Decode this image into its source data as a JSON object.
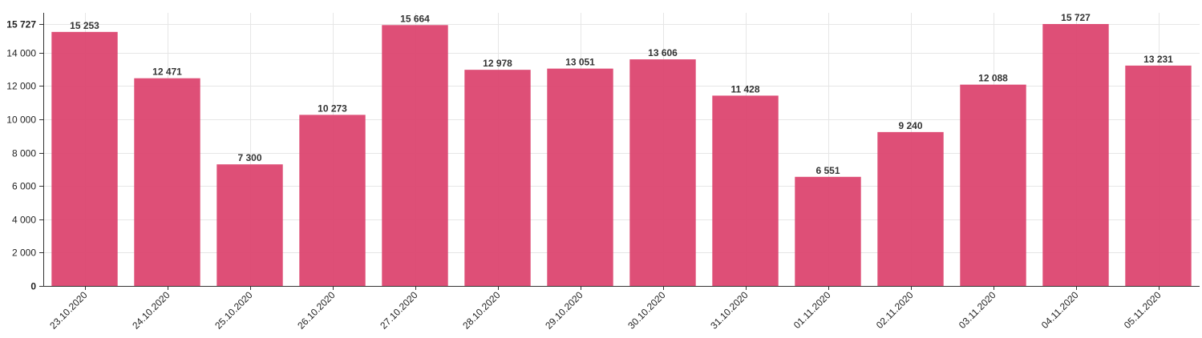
{
  "chart_data": {
    "type": "bar",
    "title": "",
    "xlabel": "",
    "ylabel": "",
    "ylim": [
      0,
      15727
    ],
    "y_ticks": [
      0,
      2000,
      4000,
      6000,
      8000,
      10000,
      12000,
      14000,
      15727
    ],
    "y_tick_labels": [
      "0",
      "2 000",
      "4 000",
      "6 000",
      "8 000",
      "10 000",
      "12 000",
      "14 000",
      "15 727"
    ],
    "categories": [
      "23.10.2020",
      "24.10.2020",
      "25.10.2020",
      "26.10.2020",
      "27.10.2020",
      "28.10.2020",
      "29.10.2020",
      "30.10.2020",
      "31.10.2020",
      "01.11.2020",
      "02.11.2020",
      "03.11.2020",
      "04.11.2020",
      "05.11.2020"
    ],
    "values": [
      15253,
      12471,
      7300,
      10273,
      15664,
      12978,
      13051,
      13606,
      11428,
      6551,
      9240,
      12088,
      15727,
      13231
    ],
    "value_labels": [
      "15 253",
      "12 471",
      "7 300",
      "10 273",
      "15 664",
      "12 978",
      "13 051",
      "13 606",
      "11 428",
      "6 551",
      "9 240",
      "12 088",
      "15 727",
      "13 231"
    ],
    "bar_color": "#dc4670",
    "grid": true,
    "legend": "none"
  }
}
